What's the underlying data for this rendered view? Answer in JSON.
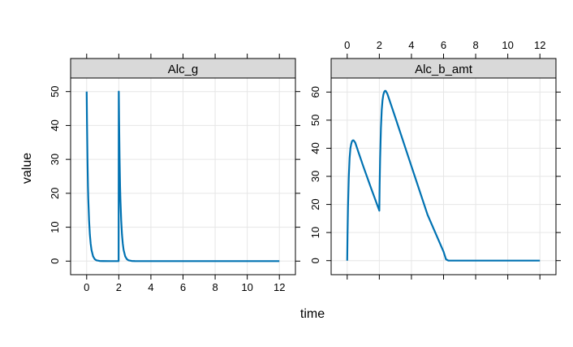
{
  "chart_data": {
    "type": "line",
    "xlabel": "time",
    "ylabel": "value",
    "line_color": "#0072B2",
    "strip_color": "#D9D9D9",
    "grid": true,
    "x_ticks": [
      0,
      2,
      4,
      6,
      8,
      10,
      12
    ],
    "xlim": [
      -1,
      13
    ],
    "panels": [
      {
        "title": "Alc_g",
        "ylim": [
          -4,
          54
        ],
        "y_ticks": [
          0,
          10,
          20,
          30,
          40,
          50
        ],
        "x_tick_labels_side": "bottom",
        "y_tick_labels_side": "left",
        "series": [
          {
            "x": [
              0,
              0.02,
              0.05,
              0.08,
              0.1,
              0.15,
              0.2,
              0.25,
              0.3,
              0.4,
              0.5,
              0.6,
              0.8,
              1.0,
              1.5,
              1.99,
              2.0,
              2.02,
              2.05,
              2.08,
              2.1,
              2.15,
              2.2,
              2.25,
              2.3,
              2.4,
              2.5,
              2.6,
              2.8,
              3.0,
              4,
              6,
              8,
              10,
              12
            ],
            "y": [
              50,
              41,
              30,
              22,
              18.4,
              12,
              7.8,
              5.1,
              3.3,
              1.4,
              0.6,
              0.25,
              0.05,
              0.01,
              0,
              0,
              50,
              41,
              30,
              22,
              18.4,
              12,
              7.8,
              5.1,
              3.3,
              1.4,
              0.6,
              0.25,
              0.05,
              0.01,
              0,
              0,
              0,
              0,
              0
            ]
          }
        ]
      },
      {
        "title": "Alc_b_amt",
        "ylim": [
          -5,
          65
        ],
        "y_ticks": [
          0,
          10,
          20,
          30,
          40,
          50,
          60
        ],
        "x_tick_labels_side": "top",
        "y_tick_labels_side": "left",
        "series": [
          {
            "x": [
              0,
              0.02,
              0.05,
              0.1,
              0.15,
              0.2,
              0.25,
              0.3,
              0.35,
              0.4,
              0.5,
              0.7,
              1.0,
              1.5,
              2.0,
              2.02,
              2.05,
              2.1,
              2.15,
              2.2,
              2.25,
              2.3,
              2.35,
              2.4,
              2.5,
              3,
              4,
              5,
              6,
              6.15,
              6.3,
              7,
              8,
              10,
              12
            ],
            "y": [
              0,
              9,
              19,
              30,
              36.5,
              40,
              41.5,
              42.5,
              42.8,
              42.8,
              42.0,
              38.6,
              33.6,
              25.6,
              17.8,
              26.8,
              36.3,
              47.1,
              53.6,
              57.1,
              59.0,
              60.0,
              60.4,
              60.4,
              59.4,
              50.9,
              33.6,
              16.4,
              3.2,
              0.5,
              0,
              0,
              0,
              0,
              0
            ]
          }
        ]
      }
    ]
  }
}
